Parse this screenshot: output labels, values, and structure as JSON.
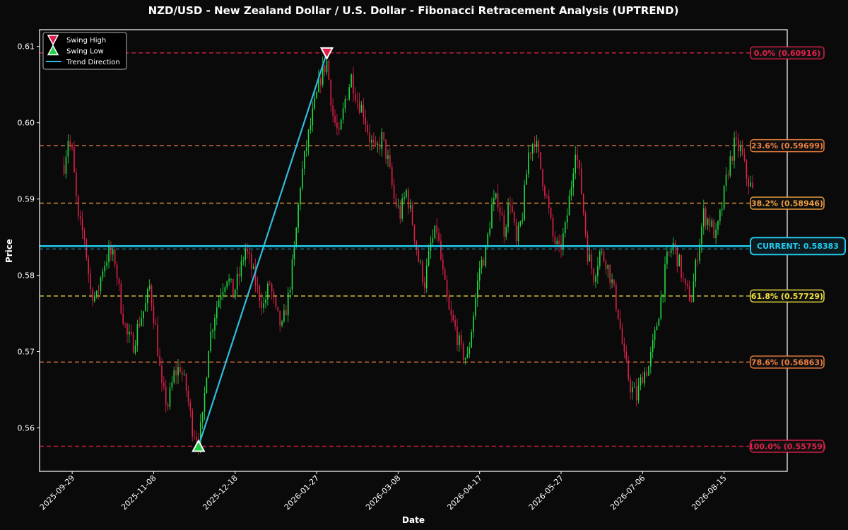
{
  "chart_data": {
    "type": "candlestick",
    "title": "NZD/USD - New Zealand Dollar / U.S. Dollar - Fibonacci Retracement Analysis (UPTREND)",
    "xlabel": "Date",
    "ylabel": "Price",
    "ylim": [
      0.5543,
      0.6122
    ],
    "xlim": [
      "2025-09-13",
      "2026-09-15"
    ],
    "y_ticks": [
      0.56,
      0.57,
      0.58,
      0.59,
      0.6,
      0.61
    ],
    "x_ticks": [
      "2025-09-29",
      "2025-11-08",
      "2025-12-18",
      "2026-01-27",
      "2026-03-08",
      "2026-04-17",
      "2026-05-27",
      "2026-07-06",
      "2026-08-15"
    ],
    "colors": {
      "up": "#22dd44",
      "down": "#e0204a",
      "trend": "#33bbdd",
      "current": "#22ccee",
      "swing_high": "#e0204a",
      "swing_low": "#22cc44"
    },
    "legend": {
      "position": "top-left",
      "entries": [
        {
          "label": "Swing High",
          "marker": "triangle-down",
          "color": "#e0204a"
        },
        {
          "label": "Swing Low",
          "marker": "triangle-up",
          "color": "#22cc44"
        },
        {
          "label": "Trend Direction",
          "marker": "line",
          "color": "#33bbdd"
        }
      ]
    },
    "fib_levels": [
      {
        "label": "0.0% (0.60916)",
        "value": 0.60916,
        "color": "#e0204a"
      },
      {
        "label": "23.6% (0.59699)",
        "value": 0.59699,
        "color": "#f08040"
      },
      {
        "label": "38.2% (0.58946)",
        "value": 0.58946,
        "color": "#f0a040"
      },
      {
        "label": "61.8% (0.57729)",
        "value": 0.57729,
        "color": "#f0e040"
      },
      {
        "label": "78.6% (0.56863)",
        "value": 0.56863,
        "color": "#f08040"
      },
      {
        "label": "100.0% (0.55759)",
        "value": 0.55759,
        "color": "#e0204a"
      }
    ],
    "current": {
      "label": "CURRENT: 0.58383",
      "value": 0.58383
    },
    "swing_high": {
      "date": "2026-02-01",
      "value": 0.60916
    },
    "swing_low": {
      "date": "2025-11-30",
      "value": 0.55759
    },
    "price_path": [
      [
        "2025-09-25",
        0.5945
      ],
      [
        "2025-09-27",
        0.598
      ],
      [
        "2025-09-29",
        0.596
      ],
      [
        "2025-10-02",
        0.587
      ],
      [
        "2025-10-05",
        0.585
      ],
      [
        "2025-10-08",
        0.578
      ],
      [
        "2025-10-11",
        0.577
      ],
      [
        "2025-10-14",
        0.581
      ],
      [
        "2025-10-17",
        0.583
      ],
      [
        "2025-10-20",
        0.582
      ],
      [
        "2025-10-23",
        0.576
      ],
      [
        "2025-10-26",
        0.572
      ],
      [
        "2025-10-29",
        0.571
      ],
      [
        "2025-11-01",
        0.574
      ],
      [
        "2025-11-04",
        0.576
      ],
      [
        "2025-11-06",
        0.5785
      ],
      [
        "2025-11-09",
        0.573
      ],
      [
        "2025-11-12",
        0.565
      ],
      [
        "2025-11-15",
        0.563
      ],
      [
        "2025-11-18",
        0.567
      ],
      [
        "2025-11-21",
        0.568
      ],
      [
        "2025-11-24",
        0.565
      ],
      [
        "2025-11-27",
        0.56
      ],
      [
        "2025-11-30",
        0.5585
      ],
      [
        "2025-12-02",
        0.561
      ],
      [
        "2025-12-05",
        0.571
      ],
      [
        "2025-12-08",
        0.575
      ],
      [
        "2025-12-11",
        0.578
      ],
      [
        "2025-12-14",
        0.58
      ],
      [
        "2025-12-17",
        0.5775
      ],
      [
        "2025-12-20",
        0.58
      ],
      [
        "2025-12-23",
        0.5835
      ],
      [
        "2025-12-26",
        0.581
      ],
      [
        "2025-12-29",
        0.578
      ],
      [
        "2026-01-01",
        0.576
      ],
      [
        "2026-01-04",
        0.579
      ],
      [
        "2026-01-07",
        0.575
      ],
      [
        "2026-01-10",
        0.573
      ],
      [
        "2026-01-13",
        0.577
      ],
      [
        "2026-01-16",
        0.583
      ],
      [
        "2026-01-19",
        0.592
      ],
      [
        "2026-01-22",
        0.597
      ],
      [
        "2026-01-25",
        0.601
      ],
      [
        "2026-01-29",
        0.606
      ],
      [
        "2026-02-01",
        0.608
      ],
      [
        "2026-02-04",
        0.601
      ],
      [
        "2026-02-07",
        0.598
      ],
      [
        "2026-02-10",
        0.603
      ],
      [
        "2026-02-13",
        0.606
      ],
      [
        "2026-02-16",
        0.603
      ],
      [
        "2026-02-19",
        0.6015
      ],
      [
        "2026-02-22",
        0.598
      ],
      [
        "2026-02-25",
        0.596
      ],
      [
        "2026-02-28",
        0.598
      ],
      [
        "2026-03-03",
        0.595
      ],
      [
        "2026-03-06",
        0.59
      ],
      [
        "2026-03-09",
        0.588
      ],
      [
        "2026-03-12",
        0.591
      ],
      [
        "2026-03-15",
        0.587
      ],
      [
        "2026-03-18",
        0.582
      ],
      [
        "2026-03-21",
        0.579
      ],
      [
        "2026-03-24",
        0.584
      ],
      [
        "2026-03-27",
        0.586
      ],
      [
        "2026-03-30",
        0.58
      ],
      [
        "2026-04-02",
        0.575
      ],
      [
        "2026-04-05",
        0.573
      ],
      [
        "2026-04-08",
        0.57
      ],
      [
        "2026-04-11",
        0.569
      ],
      [
        "2026-04-14",
        0.575
      ],
      [
        "2026-04-17",
        0.581
      ],
      [
        "2026-04-20",
        0.583
      ],
      [
        "2026-04-23",
        0.589
      ],
      [
        "2026-04-26",
        0.59
      ],
      [
        "2026-04-29",
        0.586
      ],
      [
        "2026-05-02",
        0.59
      ],
      [
        "2026-05-05",
        0.584
      ],
      [
        "2026-05-08",
        0.588
      ],
      [
        "2026-05-11",
        0.596
      ],
      [
        "2026-05-14",
        0.598
      ],
      [
        "2026-05-17",
        0.594
      ],
      [
        "2026-05-20",
        0.59
      ],
      [
        "2026-05-23",
        0.585
      ],
      [
        "2026-05-26",
        0.583
      ],
      [
        "2026-05-29",
        0.586
      ],
      [
        "2026-06-01",
        0.592
      ],
      [
        "2026-06-03",
        0.597
      ],
      [
        "2026-06-06",
        0.591
      ],
      [
        "2026-06-09",
        0.583
      ],
      [
        "2026-06-12",
        0.58
      ],
      [
        "2026-06-15",
        0.583
      ],
      [
        "2026-06-18",
        0.582
      ],
      [
        "2026-06-21",
        0.579
      ],
      [
        "2026-06-24",
        0.575
      ],
      [
        "2026-06-27",
        0.569
      ],
      [
        "2026-06-30",
        0.5655
      ],
      [
        "2026-07-03",
        0.564
      ],
      [
        "2026-07-06",
        0.567
      ],
      [
        "2026-07-09",
        0.568
      ],
      [
        "2026-07-12",
        0.572
      ],
      [
        "2026-07-15",
        0.577
      ],
      [
        "2026-07-18",
        0.582
      ],
      [
        "2026-07-21",
        0.584
      ],
      [
        "2026-07-24",
        0.5815
      ],
      [
        "2026-07-27",
        0.578
      ],
      [
        "2026-07-30",
        0.577
      ],
      [
        "2026-08-02",
        0.583
      ],
      [
        "2026-08-05",
        0.588
      ],
      [
        "2026-08-08",
        0.587
      ],
      [
        "2026-08-11",
        0.585
      ],
      [
        "2026-08-14",
        0.589
      ],
      [
        "2026-08-17",
        0.594
      ],
      [
        "2026-08-20",
        0.597
      ],
      [
        "2026-08-23",
        0.5965
      ],
      [
        "2026-08-26",
        0.593
      ],
      [
        "2026-08-29",
        0.591
      ]
    ]
  }
}
